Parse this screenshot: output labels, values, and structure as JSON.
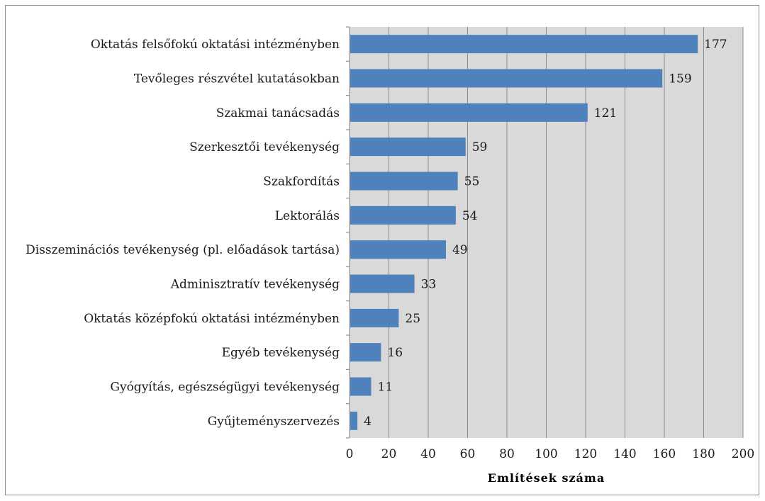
{
  "chart_data": {
    "type": "bar",
    "orientation": "horizontal",
    "categories": [
      "Oktatás felsőfokú oktatási intézményben",
      "Tevőleges részvétel kutatásokban",
      "Szakmai tanácsadás",
      "Szerkesztői tevékenység",
      "Szakfordítás",
      "Lektorálás",
      "Disszeminációs tevékenység (pl. előadások tartása)",
      "Adminisztratív tevékenység",
      "Oktatás középfokú oktatási intézményben",
      "Egyéb tevékenység",
      "Gyógyítás, egészségügyi tevékenység",
      "Gyűjteményszervezés"
    ],
    "values": [
      177,
      159,
      121,
      59,
      55,
      54,
      49,
      33,
      25,
      16,
      11,
      4
    ],
    "xlabel": "Említések száma",
    "xlim": [
      0,
      200
    ],
    "xticks": [
      "0",
      "20",
      "40",
      "60",
      "80",
      "100",
      "120",
      "140",
      "160",
      "180",
      "200"
    ],
    "grid": "vertical",
    "legend": "none",
    "colors": {
      "bar": "#4f81bd",
      "plot_background": "#d9d9d9",
      "gridline": "#8c8c8c"
    }
  }
}
